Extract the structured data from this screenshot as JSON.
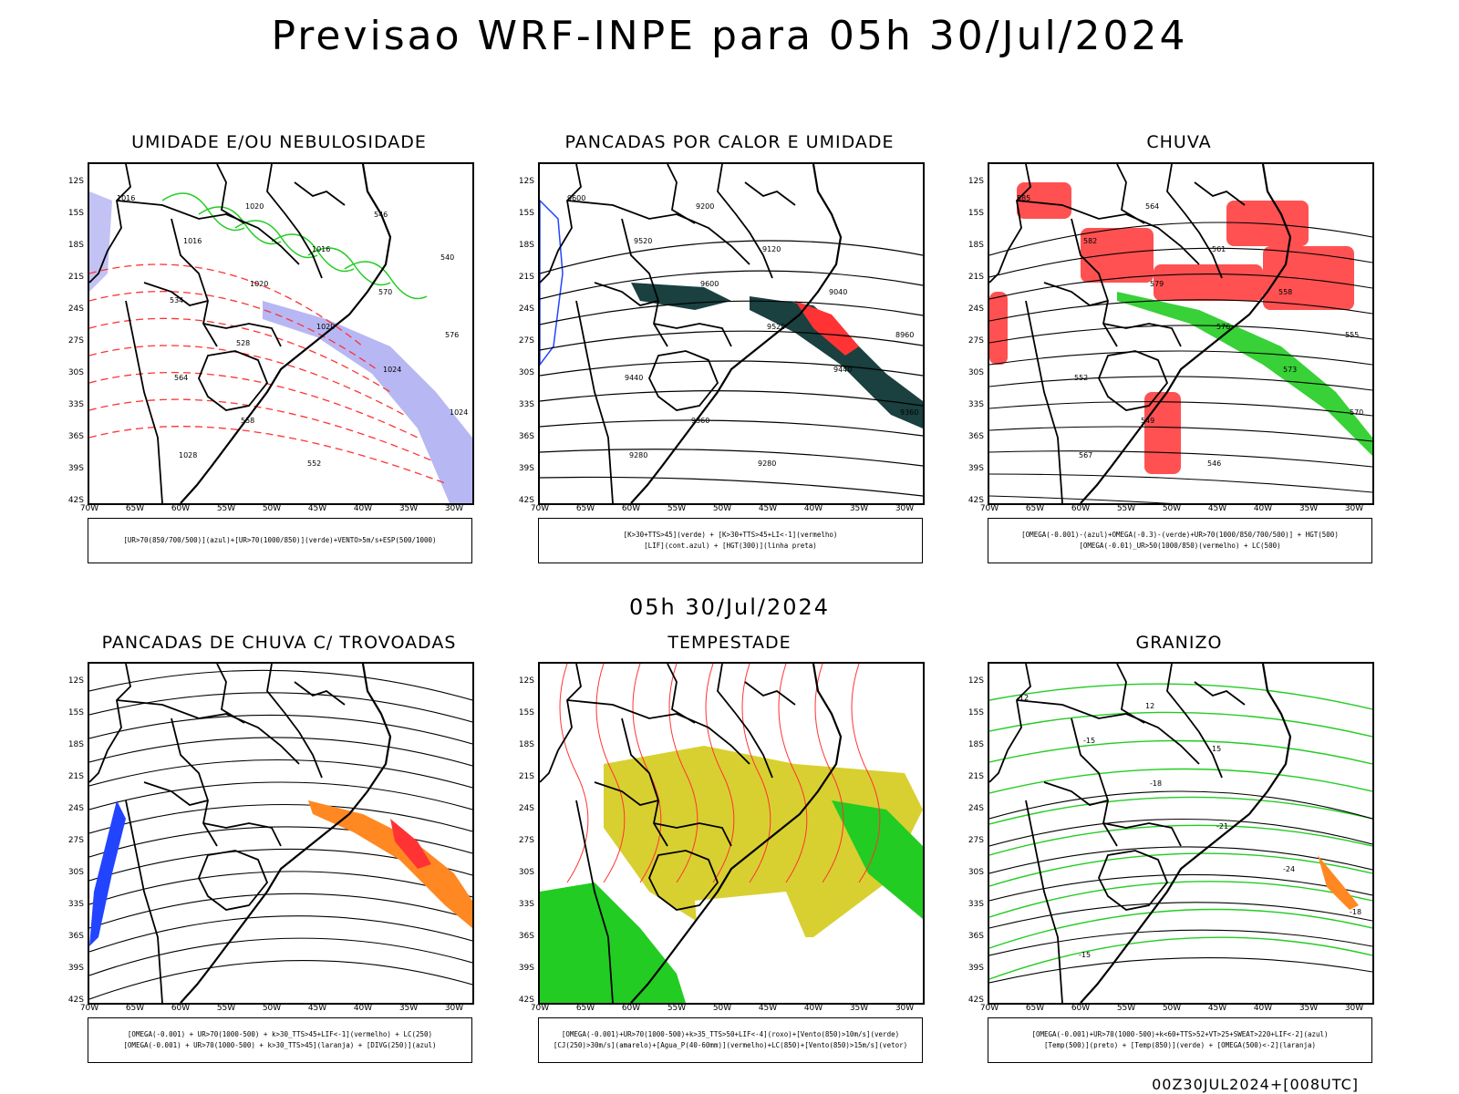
{
  "header": {
    "title": "Previsao WRF-INPE  para 05h 30/Jul/2024",
    "subtitle": "05h 30/Jul/2024",
    "footer": "00Z30JUL2024+[008UTC]"
  },
  "axes": {
    "lat_ticks": [
      "12S",
      "15S",
      "18S",
      "21S",
      "24S",
      "27S",
      "30S",
      "33S",
      "36S",
      "39S",
      "42S"
    ],
    "lon_ticks": [
      "70W",
      "65W",
      "60W",
      "55W",
      "50W",
      "45W",
      "40W",
      "35W",
      "30W"
    ]
  },
  "panels": [
    {
      "title": "UMIDADE E/OU NEBULOSIDADE",
      "legend": [
        "[UR>70(850/700/500)](azul)+[UR>70(1000/850)](verde)+VENTO>5m/s+ESP(500/1000)"
      ],
      "labels": [
        "1016",
        "1016",
        "1020",
        "1020",
        "1024",
        "1024",
        "1028",
        "1020",
        "1016",
        "570",
        "576",
        "564",
        "558",
        "552",
        "546",
        "540",
        "534",
        "528"
      ]
    },
    {
      "title": "PANCADAS POR CALOR E UMIDADE",
      "legend": [
        "[K>30+TTS>45](verde) + [K>30+TTS>45+LI<-1](vermelho)",
        "[LIF](cont.azul) + [HGT(300)](linha preta)"
      ],
      "labels": [
        "9600",
        "9520",
        "9600",
        "9520",
        "9440",
        "9360",
        "9280",
        "9200",
        "9120",
        "9040",
        "8960",
        "9440",
        "9360",
        "9280"
      ]
    },
    {
      "title": "CHUVA",
      "legend": [
        "[OMEGA(-0.001)-(azul)+OMEGA(-0.3)-(verde)+UR>70(1000/850/700/500)] + HGT(500)",
        "[OMEGA(-0.01)_UR>50(1000/850)(vermelho) + LC(500)"
      ],
      "labels": [
        "585",
        "582",
        "579",
        "576",
        "573",
        "570",
        "567",
        "564",
        "561",
        "558",
        "555",
        "552",
        "549",
        "546"
      ]
    },
    {
      "title": "PANCADAS DE CHUVA C/ TROVOADAS",
      "legend": [
        "[OMEGA(-0.001) + UR>70(1000-500) + k>30_TTS>45+LIF<-1](vermelho) + LC(250)",
        "[OMEGA(-0.001) + UR>70(1000-500) + k>30_TTS>45](laranja) + [DIVG(250)](azul)"
      ],
      "labels": []
    },
    {
      "title": "TEMPESTADE",
      "legend": [
        "[OMEGA(-0.001)+UR>70(1000-500)+k>35_TTS>50+LIF<-4](roxo)+[Vento(850)>10m/s](verde)",
        "[CJ(250)>30m/s](amarelo)+[Agua_P(40-60mm)](vermelho)+LC(850)+[Vento(850)>15m/s](vetor)"
      ],
      "labels": []
    },
    {
      "title": "GRANIZO",
      "legend": [
        "[OMEGA(-0.001)+UR>70(1000-500)+k<60+TTS>52+VT>25+SWEAT>220+LIF<-2](azul)",
        "[Temp(500)](preto) + [Temp(850)](verde) + [OMEGA(500)<-2](laranja)"
      ],
      "labels": [
        "-12",
        "-15",
        "-18",
        "-21",
        "-24",
        "-18",
        "-15",
        "12",
        "15"
      ]
    }
  ],
  "colors": {
    "blue": "#2244ff",
    "green": "#22cc22",
    "red": "#ff3333",
    "orange": "#ff8822",
    "yellow": "#d8d030",
    "teal": "#1a4040",
    "lavender": "#9999ee"
  }
}
